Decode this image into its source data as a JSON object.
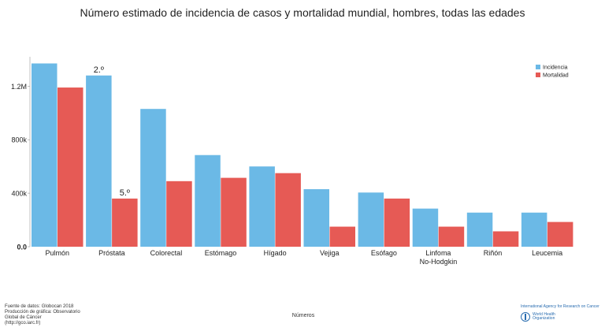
{
  "title": "Número estimado de incidencia de casos y mortalidad mundial, hombres, todas las edades",
  "chart_data": {
    "type": "bar",
    "categories": [
      "Pulmón",
      "Próstata",
      "Colorectal",
      "Estómago",
      "Hígado",
      "Vejiga",
      "Esófago",
      "Linfoma No-Hodgkin",
      "Riñón",
      "Leucemia"
    ],
    "category_labels": [
      [
        "Pulmón"
      ],
      [
        "Próstata"
      ],
      [
        "Colorectal"
      ],
      [
        "Estómago"
      ],
      [
        "Hígado"
      ],
      [
        "Vejiga"
      ],
      [
        "Esófago"
      ],
      [
        "Linfoma",
        "No-Hodgkin"
      ],
      [
        "Riñón"
      ],
      [
        "Leucemia"
      ]
    ],
    "series": [
      {
        "name": "Incidencia",
        "color": "#6bb9e6",
        "values": [
          1370000,
          1280000,
          1030000,
          685000,
          600000,
          430000,
          405000,
          285000,
          255000,
          255000
        ]
      },
      {
        "name": "Mortalidad",
        "color": "#e65a55",
        "values": [
          1190000,
          360000,
          490000,
          515000,
          550000,
          150000,
          360000,
          150000,
          115000,
          185000
        ]
      }
    ],
    "yticks": [
      {
        "value": 0,
        "label": "0.0"
      },
      {
        "value": 400000,
        "label": "400k"
      },
      {
        "value": 800000,
        "label": "800k"
      },
      {
        "value": 1200000,
        "label": "1.2M"
      }
    ],
    "ylim": [
      0,
      1420000
    ],
    "annotations": [
      {
        "category": 1,
        "series": 0,
        "text": "2.º"
      },
      {
        "category": 1,
        "series": 1,
        "text": "5.º"
      }
    ],
    "xlabel": "Números",
    "legend_position": "top-right",
    "grid": false
  },
  "footer": {
    "source_lines": [
      "Fuente de datos: Globocan 2018",
      "Producción de gráfica: Observatorio",
      "Global de Cáncer",
      "(http://gco.iarc.fr)"
    ],
    "iarc": "International Agency for Research on Cancer",
    "who_lines": [
      "World Health",
      "Organization"
    ]
  }
}
